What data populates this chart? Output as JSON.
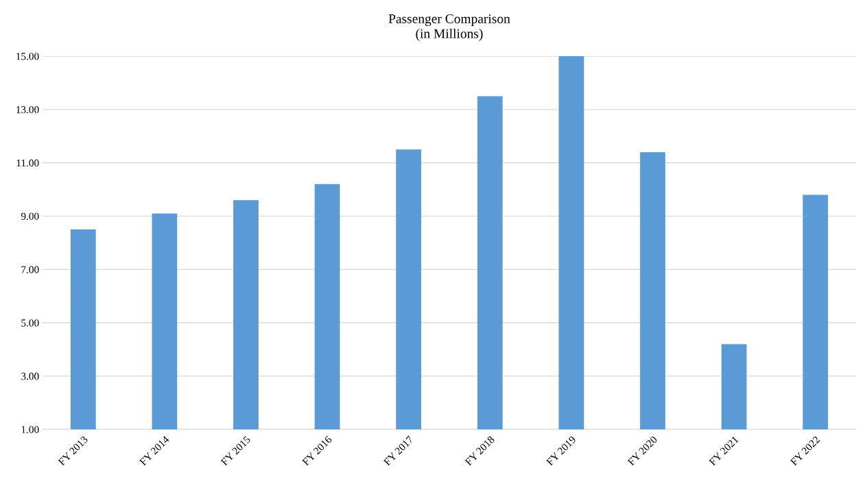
{
  "chart_data": {
    "type": "bar",
    "title": "Passenger Comparison\n(in Millions)",
    "categories": [
      "FY 2013",
      "FY 2014",
      "FY 2015",
      "FY 2016",
      "FY 2017",
      "FY 2018",
      "FY 2019",
      "FY 2020",
      "FY 2021",
      "FY 2022"
    ],
    "values": [
      8.5,
      9.1,
      9.6,
      10.2,
      11.5,
      13.5,
      15.0,
      11.4,
      4.2,
      9.8
    ],
    "color": "#5b9bd5",
    "ylim": [
      1,
      15
    ],
    "yticks": [
      {
        "value": 1,
        "label": "1.00"
      },
      {
        "value": 3,
        "label": "3.00"
      },
      {
        "value": 5,
        "label": "5.00"
      },
      {
        "value": 7,
        "label": "7.00"
      },
      {
        "value": 9,
        "label": "9.00"
      },
      {
        "value": 11,
        "label": "11.00"
      },
      {
        "value": 13,
        "label": "13.00"
      },
      {
        "value": 15,
        "label": "15.00"
      }
    ],
    "grid": "y",
    "legend": false
  }
}
